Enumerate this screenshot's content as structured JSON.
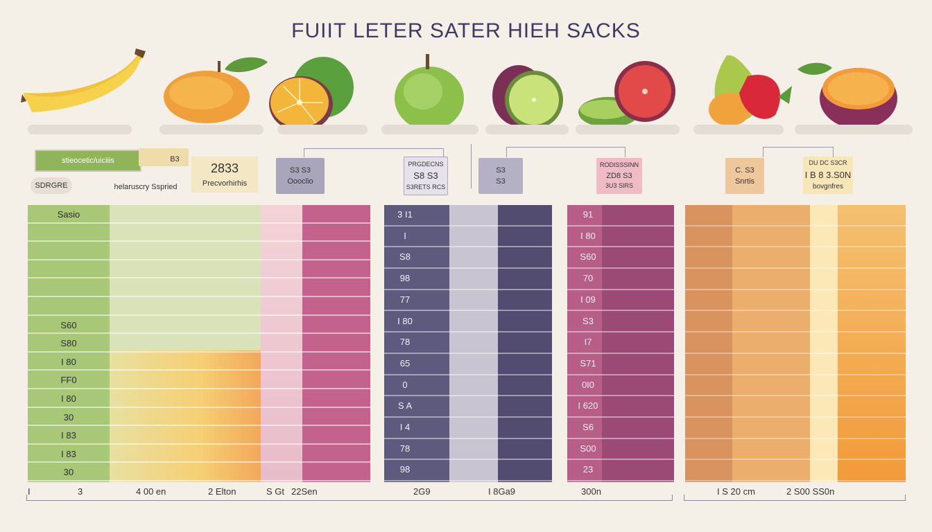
{
  "title": "FUIIT  LETER SATER  HIEH SACKS",
  "top_labels": {
    "green_banner": "stieocetic/uiciiis",
    "green_sub": "SDRGRE",
    "label_b3": "B3",
    "label_health": "helaruscry  Sspried",
    "box_2833": "2833",
    "box_2833_sub": "Precvorhirhis",
    "box_purple_top": "S3 S3",
    "box_purple_bottom": "Oooclio",
    "box_purple2_top": "PRGDECNS",
    "box_purple2_mid": "S8 S3",
    "box_purple2_bottom": "S3RETS RCS",
    "box_dark_top": "S3",
    "box_dark_bottom": "S3",
    "box_pink_top": "RODISSSINN",
    "box_pink_mid": "ZD8 S3",
    "box_pink_bottom": "3U3 SIRS",
    "box_orange_top": "C. S3",
    "box_orange_bottom": "Snrtis",
    "box_yellow_top": "DU DC S3CR",
    "box_yellow_mid": "I B 8 3.S0N",
    "box_yellow_bottom": "bovgnfres"
  },
  "columns": {
    "green": [
      "Sasio",
      "",
      "",
      "",
      "",
      "",
      "S60",
      "S80",
      "I 80",
      "FF0",
      "I 80",
      "30",
      "I 83",
      "I 83",
      "30"
    ],
    "purple": [
      "3 I1",
      "I",
      "S8",
      "98",
      "77",
      "I 80",
      "78",
      "65",
      "0",
      "S A",
      "I 4",
      "78",
      "98"
    ],
    "magenta": [
      "91",
      "I 80",
      "S60",
      "70",
      "I 09",
      "S3",
      "I7",
      "S71",
      "0I0",
      "I 620",
      "S6",
      "S00",
      "23"
    ]
  },
  "axis_labels": [
    "I",
    "3",
    "4 00 en",
    "2 Elton",
    "S Gt",
    "22Sen",
    "2G9",
    "I 8Ga9",
    "300n",
    "I S 20 cm",
    "2 S00 SS0n"
  ],
  "colors": {
    "green": "#9bbf64",
    "purple": "#4e4a70",
    "magenta": "#8b3a66",
    "orange": "#f0a452",
    "yellow": "#f6d58c"
  },
  "icons": [
    "banana-icon",
    "mango-icon",
    "orange-lime-icon",
    "apple-icon",
    "plum-lime-icon",
    "grapefruit-icon",
    "pear-strawberry-icon",
    "orange-plum-icon"
  ]
}
